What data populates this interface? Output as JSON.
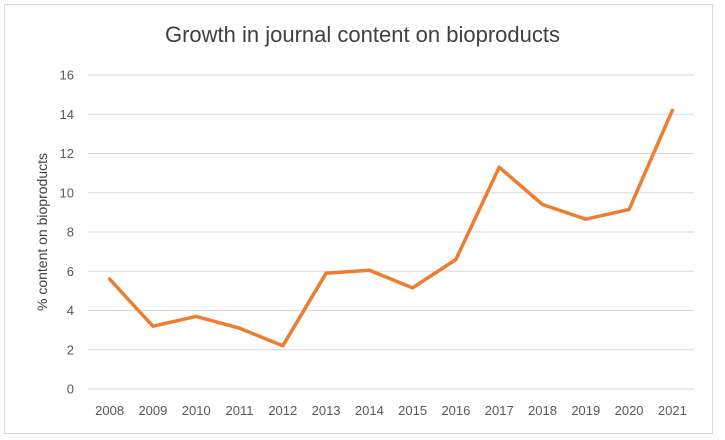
{
  "chart_data": {
    "type": "line",
    "title": "Growth in journal content on bioproducts",
    "xlabel": "",
    "ylabel": "% content on bioproducts",
    "categories": [
      "2008",
      "2009",
      "2010",
      "2011",
      "2012",
      "2013",
      "2014",
      "2015",
      "2016",
      "2017",
      "2018",
      "2019",
      "2020",
      "2021"
    ],
    "series": [
      {
        "name": "% content on bioproducts",
        "values": [
          5.6,
          3.2,
          3.7,
          3.1,
          2.2,
          5.9,
          6.05,
          5.15,
          6.6,
          11.3,
          9.4,
          8.65,
          9.15,
          14.2
        ],
        "color": "#ed7d31"
      }
    ],
    "ylim": [
      0,
      16
    ],
    "yticks": [
      0,
      2,
      4,
      6,
      8,
      10,
      12,
      14,
      16
    ],
    "ytick_labels": [
      "0",
      "2",
      "4",
      "6",
      "8",
      "10",
      "12",
      "14",
      "16"
    ],
    "grid": true,
    "legend": "none"
  }
}
